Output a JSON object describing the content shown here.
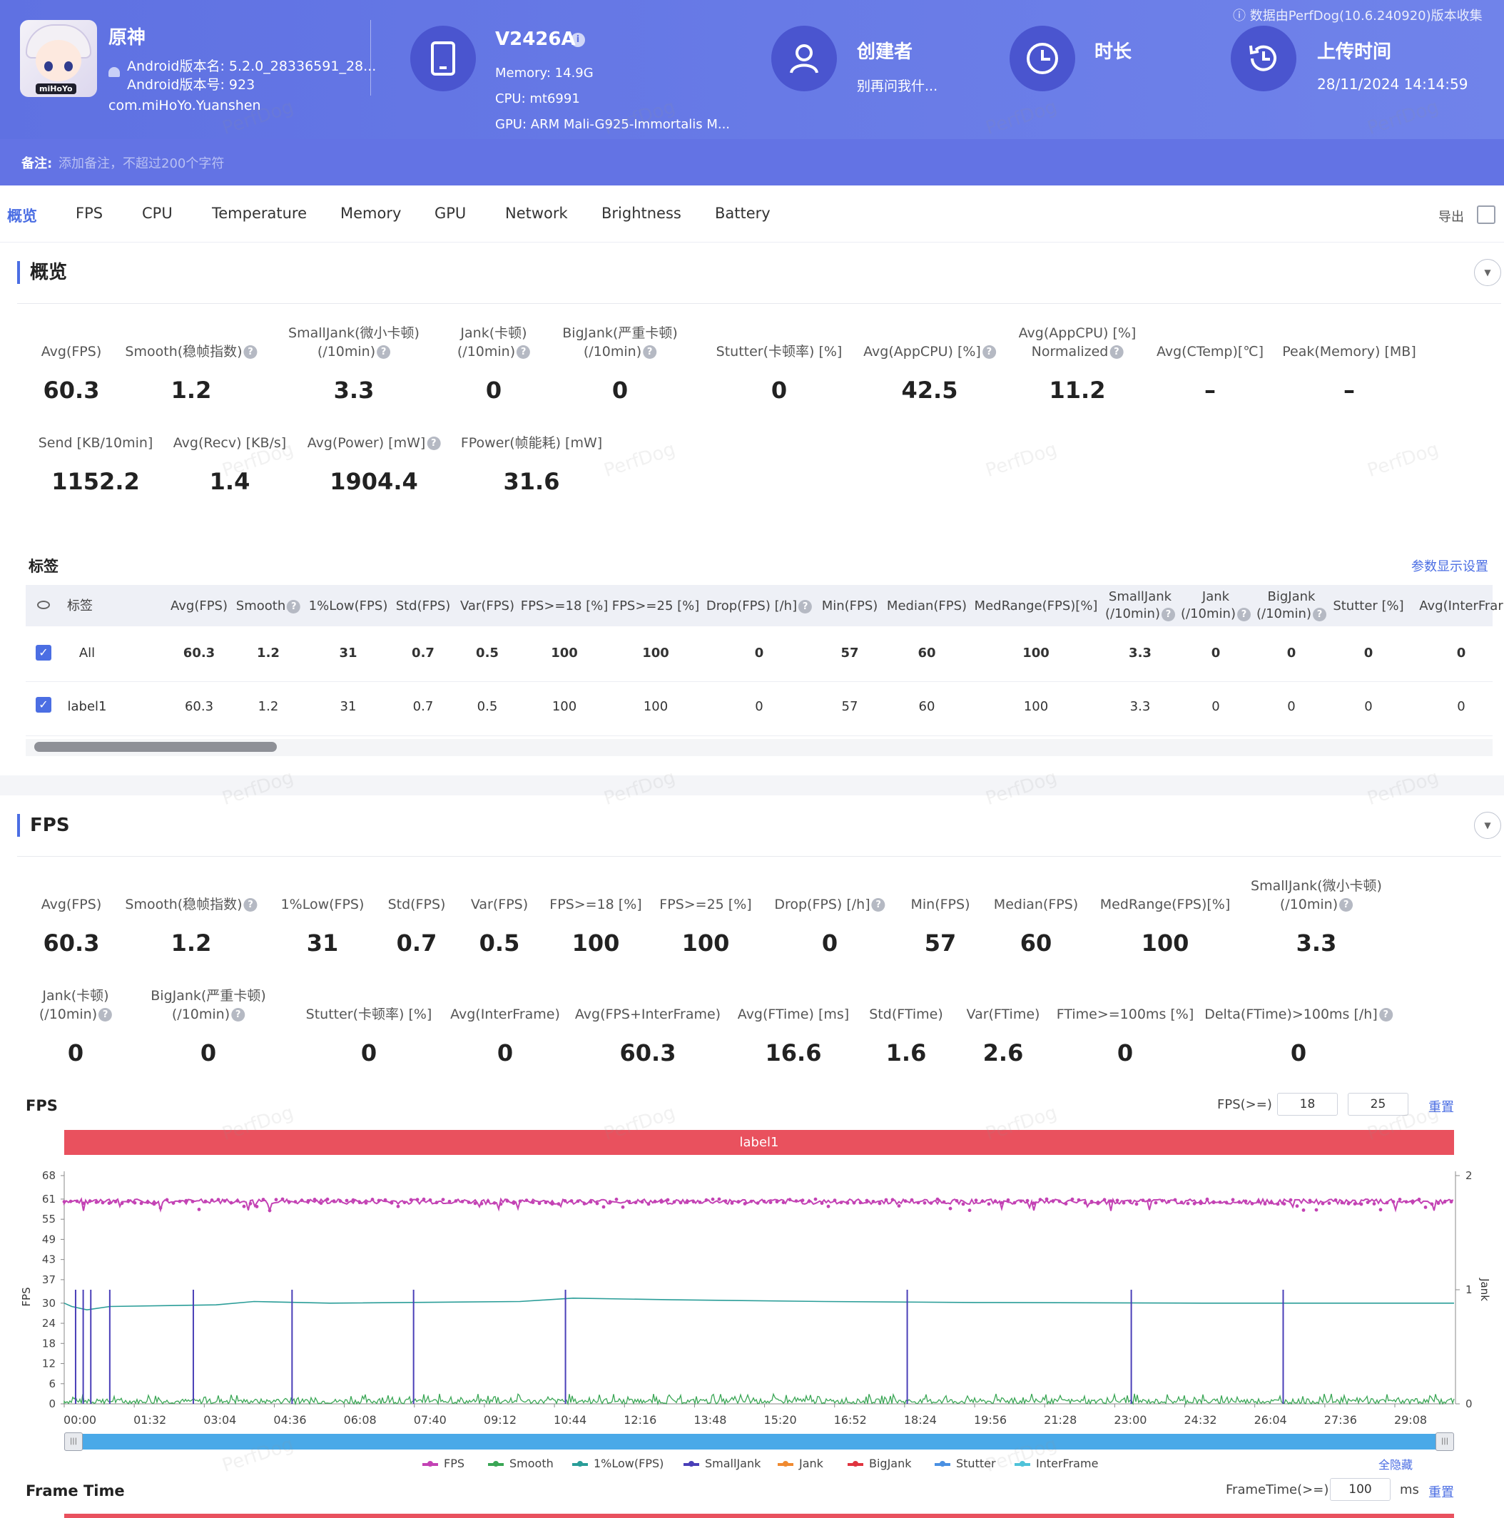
{
  "header": {
    "app_name": "原神",
    "android_version_name": "Android版本名: 5.2.0_28336591_28...",
    "android_version_code": "Android版本号: 923",
    "package": "com.miHoYo.Yuanshen",
    "device_model": "V2426A",
    "memory": "Memory: 14.9G",
    "cpu": "CPU: mt6991",
    "gpu": "GPU: ARM Mali-G925-Immortalis M...",
    "creator_label": "创建者",
    "creator_value": "别再问我什...",
    "duration_label": "时长",
    "upload_label": "上传时间",
    "upload_value": "28/11/2024 14:14:59",
    "data_source": "数据由PerfDog(10.6.240920)版本收集",
    "note_label": "备注:",
    "note_placeholder": "添加备注，不超过200个字符",
    "logo_text": "miHoYo",
    "icons": [
      "phone-icon",
      "user-icon",
      "clock-icon",
      "history-icon",
      "android-icon",
      "info-icon"
    ]
  },
  "tabs": [
    "概览",
    "FPS",
    "CPU",
    "Temperature",
    "Memory",
    "GPU",
    "Network",
    "Brightness",
    "Battery"
  ],
  "export_label": "导出",
  "overview": {
    "title": "概览",
    "metrics_row1": [
      {
        "label": "Avg(FPS)",
        "value": "60.3"
      },
      {
        "label": "Smooth(稳帧指数)",
        "value": "1.2"
      },
      {
        "label": "SmallJank(微小卡顿)",
        "label2": "(/10min)",
        "value": "3.3"
      },
      {
        "label": "Jank(卡顿)",
        "label2": "(/10min)",
        "value": "0"
      },
      {
        "label": "BigJank(严重卡顿)",
        "label2": "(/10min)",
        "value": "0"
      },
      {
        "label": "Stutter(卡顿率) [%]",
        "value": "0"
      },
      {
        "label": "Avg(AppCPU) [%]",
        "value": "42.5"
      },
      {
        "label": "Avg(AppCPU) [%]",
        "label2": "Normalized",
        "value": "11.2"
      },
      {
        "label": "Avg(CTemp)[℃]",
        "value": "–"
      },
      {
        "label": "Peak(Memory) [MB]",
        "value": "–"
      }
    ],
    "metrics_row2": [
      {
        "label": "Send [KB/10min]",
        "value": "1152.2"
      },
      {
        "label": "Avg(Recv) [KB/s]",
        "value": "1.4"
      },
      {
        "label": "Avg(Power) [mW]",
        "value": "1904.4"
      },
      {
        "label": "FPower(帧能耗) [mW]",
        "value": "31.6"
      }
    ]
  },
  "tags": {
    "title": "标签",
    "settings_link": "参数显示设置",
    "columns": [
      "标签",
      "Avg(FPS)",
      "Smooth",
      "1%Low(FPS)",
      "Std(FPS)",
      "Var(FPS)",
      "FPS>=18 [%]",
      "FPS>=25 [%]",
      "Drop(FPS) [/h]",
      "Min(FPS)",
      "Median(FPS)",
      "MedRange(FPS)[%]",
      "SmallJank (/10min)",
      "Jank (/10min)",
      "BigJank (/10min)",
      "Stutter [%]",
      "Avg(InterFrar"
    ],
    "rows": [
      [
        "All",
        "60.3",
        "1.2",
        "31",
        "0.7",
        "0.5",
        "100",
        "100",
        "0",
        "57",
        "60",
        "100",
        "3.3",
        "0",
        "0",
        "0",
        "0"
      ],
      [
        "label1",
        "60.3",
        "1.2",
        "31",
        "0.7",
        "0.5",
        "100",
        "100",
        "0",
        "57",
        "60",
        "100",
        "3.3",
        "0",
        "0",
        "0",
        "0"
      ]
    ]
  },
  "fps_section": {
    "title": "FPS",
    "metrics_row1": [
      {
        "label": "Avg(FPS)",
        "value": "60.3"
      },
      {
        "label": "Smooth(稳帧指数)",
        "value": "1.2"
      },
      {
        "label": "1%Low(FPS)",
        "value": "31"
      },
      {
        "label": "Std(FPS)",
        "value": "0.7"
      },
      {
        "label": "Var(FPS)",
        "value": "0.5"
      },
      {
        "label": "FPS>=18 [%]",
        "value": "100"
      },
      {
        "label": "FPS>=25 [%]",
        "value": "100"
      },
      {
        "label": "Drop(FPS) [/h]",
        "value": "0"
      },
      {
        "label": "Min(FPS)",
        "value": "57"
      },
      {
        "label": "Median(FPS)",
        "value": "60"
      },
      {
        "label": "MedRange(FPS)[%]",
        "value": "100"
      },
      {
        "label": "SmallJank(微小卡顿)",
        "label2": "(/10min)",
        "value": "3.3"
      }
    ],
    "metrics_row2": [
      {
        "label": "Jank(卡顿)",
        "label2": "(/10min)",
        "value": "0"
      },
      {
        "label": "BigJank(严重卡顿)",
        "label2": "(/10min)",
        "value": "0"
      },
      {
        "label": "Stutter(卡顿率) [%]",
        "value": "0"
      },
      {
        "label": "Avg(InterFrame)",
        "value": "0"
      },
      {
        "label": "Avg(FPS+InterFrame)",
        "value": "60.3"
      },
      {
        "label": "Avg(FTime) [ms]",
        "value": "16.6"
      },
      {
        "label": "Std(FTime)",
        "value": "1.6"
      },
      {
        "label": "Var(FTime)",
        "value": "2.6"
      },
      {
        "label": "FTime>=100ms [%]",
        "value": "0"
      },
      {
        "label": "Delta(FTime)>100ms [/h]",
        "value": "0"
      }
    ],
    "chart_title": "FPS",
    "fps_threshold_label": "FPS(>=)",
    "fps_threshold_1": "18",
    "fps_threshold_2": "25",
    "reset_label": "重置",
    "hide_all_label": "全隐藏",
    "label_bar": "label1"
  },
  "chart_data": {
    "type": "line",
    "title": "",
    "ylabel": "FPS",
    "y2label": "Jank",
    "ylim": [
      0,
      68
    ],
    "y2lim": [
      0,
      2
    ],
    "yticks": [
      0,
      6,
      12,
      18,
      24,
      30,
      37,
      43,
      49,
      55,
      61,
      68
    ],
    "y2ticks": [
      0,
      1,
      2
    ],
    "xticks": [
      "00:00",
      "01:32",
      "03:04",
      "04:36",
      "06:08",
      "07:40",
      "09:12",
      "10:44",
      "12:16",
      "13:48",
      "15:20",
      "16:52",
      "18:24",
      "19:56",
      "21:28",
      "23:00",
      "24:32",
      "26:04",
      "27:36",
      "29:08"
    ],
    "xlim_seconds": [
      0,
      1830
    ],
    "legend": [
      {
        "name": "FPS",
        "color": "#c342b4"
      },
      {
        "name": "Smooth",
        "color": "#3aa655"
      },
      {
        "name": "1%Low(FPS)",
        "color": "#2a9d98"
      },
      {
        "name": "SmallJank",
        "color": "#4a3fb8"
      },
      {
        "name": "Jank",
        "color": "#f08a30"
      },
      {
        "name": "BigJank",
        "color": "#e0343f"
      },
      {
        "name": "Stutter",
        "color": "#4a90e2"
      },
      {
        "name": "InterFrame",
        "color": "#4fc3d9"
      }
    ],
    "series": [
      {
        "name": "FPS",
        "approx_value": 60,
        "min": 57,
        "max": 61
      },
      {
        "name": "1%Low(FPS)",
        "points": [
          [
            0,
            30
          ],
          [
            10,
            29
          ],
          [
            30,
            28
          ],
          [
            60,
            29
          ],
          [
            200,
            29.5
          ],
          [
            250,
            30.5
          ],
          [
            350,
            30
          ],
          [
            600,
            30.5
          ],
          [
            670,
            31.5
          ],
          [
            800,
            31
          ],
          [
            1000,
            30.5
          ],
          [
            1200,
            30.2
          ],
          [
            1500,
            30
          ],
          [
            1830,
            30
          ]
        ]
      },
      {
        "name": "SmallJank",
        "spike_times": [
          15,
          25,
          35,
          60,
          170,
          300,
          460,
          660,
          1110,
          1405,
          1605
        ]
      },
      {
        "name": "Smooth",
        "approx_range": [
          0,
          3
        ]
      }
    ]
  },
  "frame_time": {
    "title": "Frame Time",
    "threshold_label": "FrameTime(>=)",
    "threshold_value": "100",
    "unit": "ms",
    "reset_label": "重置"
  },
  "watermark": "PerfDog"
}
